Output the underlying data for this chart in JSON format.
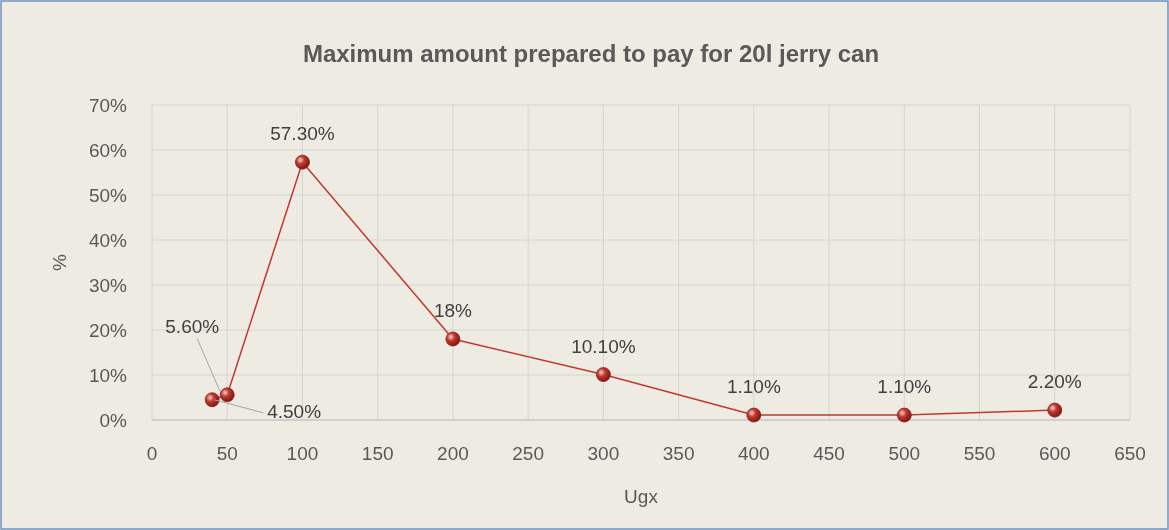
{
  "chart_data": {
    "type": "line",
    "title": "Maximum amount prepared to pay for 20l jerry can",
    "xlabel": "Ugx",
    "ylabel": "%",
    "x": [
      40,
      50,
      100,
      200,
      300,
      400,
      500,
      600
    ],
    "series": [
      {
        "color": "#c0392f",
        "values": [
          4.5,
          5.6,
          57.3,
          18,
          10.1,
          1.1,
          1.1,
          2.2
        ],
        "value_labels": [
          "4.50%",
          "5.60%",
          "57.30%",
          "18%",
          "10.10%",
          "1.10%",
          "1.10%",
          "2.20%"
        ]
      }
    ],
    "xlim": [
      0,
      650
    ],
    "xticks": [
      0,
      50,
      100,
      150,
      200,
      250,
      300,
      350,
      400,
      450,
      500,
      550,
      600,
      650
    ],
    "ylim": [
      0,
      70
    ],
    "yticks": [
      {
        "value": 0,
        "label": "0%"
      },
      {
        "value": 10,
        "label": "10%"
      },
      {
        "value": 20,
        "label": "20%"
      },
      {
        "value": 30,
        "label": "30%"
      },
      {
        "value": 40,
        "label": "40%"
      },
      {
        "value": 50,
        "label": "50%"
      },
      {
        "value": 60,
        "label": "60%"
      },
      {
        "value": 70,
        "label": "70%"
      }
    ],
    "grid": true,
    "marker": "circle",
    "line_style": "solid"
  }
}
